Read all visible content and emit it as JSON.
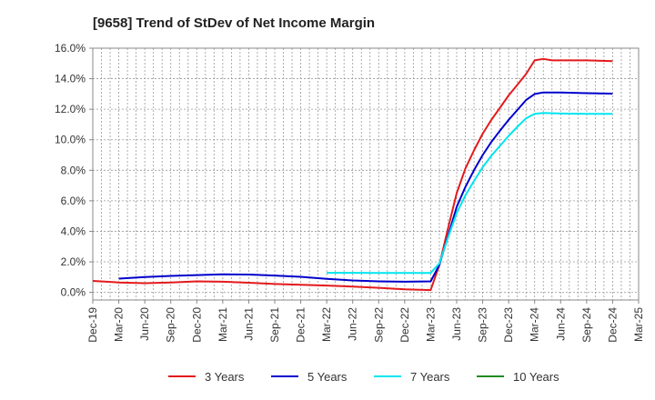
{
  "chart_data": {
    "type": "line",
    "title": "[9658]  Trend of StDev of Net Income Margin",
    "xlabel": "",
    "ylabel": "",
    "ylim": [
      -0.5,
      16.0
    ],
    "y_ticks": [
      {
        "value": 0,
        "label": "0.0%"
      },
      {
        "value": 2,
        "label": "2.0%"
      },
      {
        "value": 4,
        "label": "4.0%"
      },
      {
        "value": 6,
        "label": "6.0%"
      },
      {
        "value": 8,
        "label": "8.0%"
      },
      {
        "value": 10,
        "label": "10.0%"
      },
      {
        "value": 12,
        "label": "12.0%"
      },
      {
        "value": 14,
        "label": "14.0%"
      },
      {
        "value": 16,
        "label": "16.0%"
      }
    ],
    "x_labels": [
      "Dec-19",
      "Mar-20",
      "Jun-20",
      "Sep-20",
      "Dec-20",
      "Mar-21",
      "Jun-21",
      "Sep-21",
      "Dec-21",
      "Mar-22",
      "Jun-22",
      "Sep-22",
      "Dec-22",
      "Mar-23",
      "Jun-23",
      "Sep-23",
      "Dec-23",
      "Mar-24",
      "Jun-24",
      "Sep-24",
      "Dec-24",
      "Mar-25"
    ],
    "grid": true,
    "legend_position": "bottom",
    "series": [
      {
        "name": "3 Years",
        "color": "#e31a1c",
        "points": [
          [
            "Dec-19",
            0.75
          ],
          [
            "Mar-20",
            0.65
          ],
          [
            "Jun-20",
            0.6
          ],
          [
            "Sep-20",
            0.65
          ],
          [
            "Dec-20",
            0.72
          ],
          [
            "Mar-21",
            0.7
          ],
          [
            "Jun-21",
            0.63
          ],
          [
            "Sep-21",
            0.55
          ],
          [
            "Dec-21",
            0.5
          ],
          [
            "Mar-22",
            0.45
          ],
          [
            "Jun-22",
            0.38
          ],
          [
            "Sep-22",
            0.3
          ],
          [
            "Dec-22",
            0.2
          ],
          [
            "Mar-23",
            0.15
          ],
          [
            "Apr-23",
            1.8
          ],
          [
            "May-23",
            4.2
          ],
          [
            "Jun-23",
            6.5
          ],
          [
            "Jul-23",
            8.1
          ],
          [
            "Aug-23",
            9.3
          ],
          [
            "Sep-23",
            10.4
          ],
          [
            "Oct-23",
            11.3
          ],
          [
            "Nov-23",
            12.1
          ],
          [
            "Dec-23",
            12.9
          ],
          [
            "Jan-24",
            13.6
          ],
          [
            "Feb-24",
            14.3
          ],
          [
            "Mar-24",
            15.2
          ],
          [
            "Apr-24",
            15.3
          ],
          [
            "May-24",
            15.2
          ],
          [
            "Jun-24",
            15.2
          ],
          [
            "Sep-24",
            15.2
          ],
          [
            "Dec-24",
            15.15
          ]
        ]
      },
      {
        "name": "5 Years",
        "color": "#0000cc",
        "points": [
          [
            "Mar-20",
            0.9
          ],
          [
            "Jun-20",
            1.0
          ],
          [
            "Sep-20",
            1.08
          ],
          [
            "Dec-20",
            1.13
          ],
          [
            "Mar-21",
            1.18
          ],
          [
            "Jun-21",
            1.17
          ],
          [
            "Sep-21",
            1.1
          ],
          [
            "Dec-21",
            1.02
          ],
          [
            "Mar-22",
            0.88
          ],
          [
            "Jun-22",
            0.78
          ],
          [
            "Sep-22",
            0.72
          ],
          [
            "Dec-22",
            0.7
          ],
          [
            "Mar-23",
            0.72
          ],
          [
            "Apr-23",
            1.8
          ],
          [
            "May-23",
            3.7
          ],
          [
            "Jun-23",
            5.6
          ],
          [
            "Jul-23",
            6.9
          ],
          [
            "Aug-23",
            8.0
          ],
          [
            "Sep-23",
            9.0
          ],
          [
            "Oct-23",
            9.85
          ],
          [
            "Nov-23",
            10.6
          ],
          [
            "Dec-23",
            11.3
          ],
          [
            "Jan-24",
            11.95
          ],
          [
            "Feb-24",
            12.6
          ],
          [
            "Mar-24",
            13.0
          ],
          [
            "Apr-24",
            13.1
          ],
          [
            "Jun-24",
            13.1
          ],
          [
            "Sep-24",
            13.05
          ],
          [
            "Dec-24",
            13.02
          ]
        ]
      },
      {
        "name": "7 Years",
        "color": "#00e5ee",
        "points": [
          [
            "Mar-22",
            1.28
          ],
          [
            "Jun-22",
            1.28
          ],
          [
            "Sep-22",
            1.27
          ],
          [
            "Dec-22",
            1.27
          ],
          [
            "Mar-23",
            1.27
          ],
          [
            "Apr-23",
            1.9
          ],
          [
            "May-23",
            3.6
          ],
          [
            "Jun-23",
            5.2
          ],
          [
            "Jul-23",
            6.35
          ],
          [
            "Aug-23",
            7.3
          ],
          [
            "Sep-23",
            8.2
          ],
          [
            "Oct-23",
            8.95
          ],
          [
            "Nov-23",
            9.6
          ],
          [
            "Dec-23",
            10.25
          ],
          [
            "Jan-24",
            10.85
          ],
          [
            "Feb-24",
            11.4
          ],
          [
            "Mar-24",
            11.7
          ],
          [
            "Apr-24",
            11.75
          ],
          [
            "Jun-24",
            11.72
          ],
          [
            "Sep-24",
            11.7
          ],
          [
            "Dec-24",
            11.7
          ]
        ]
      },
      {
        "name": "10 Years",
        "color": "#228b22",
        "points": []
      }
    ]
  }
}
